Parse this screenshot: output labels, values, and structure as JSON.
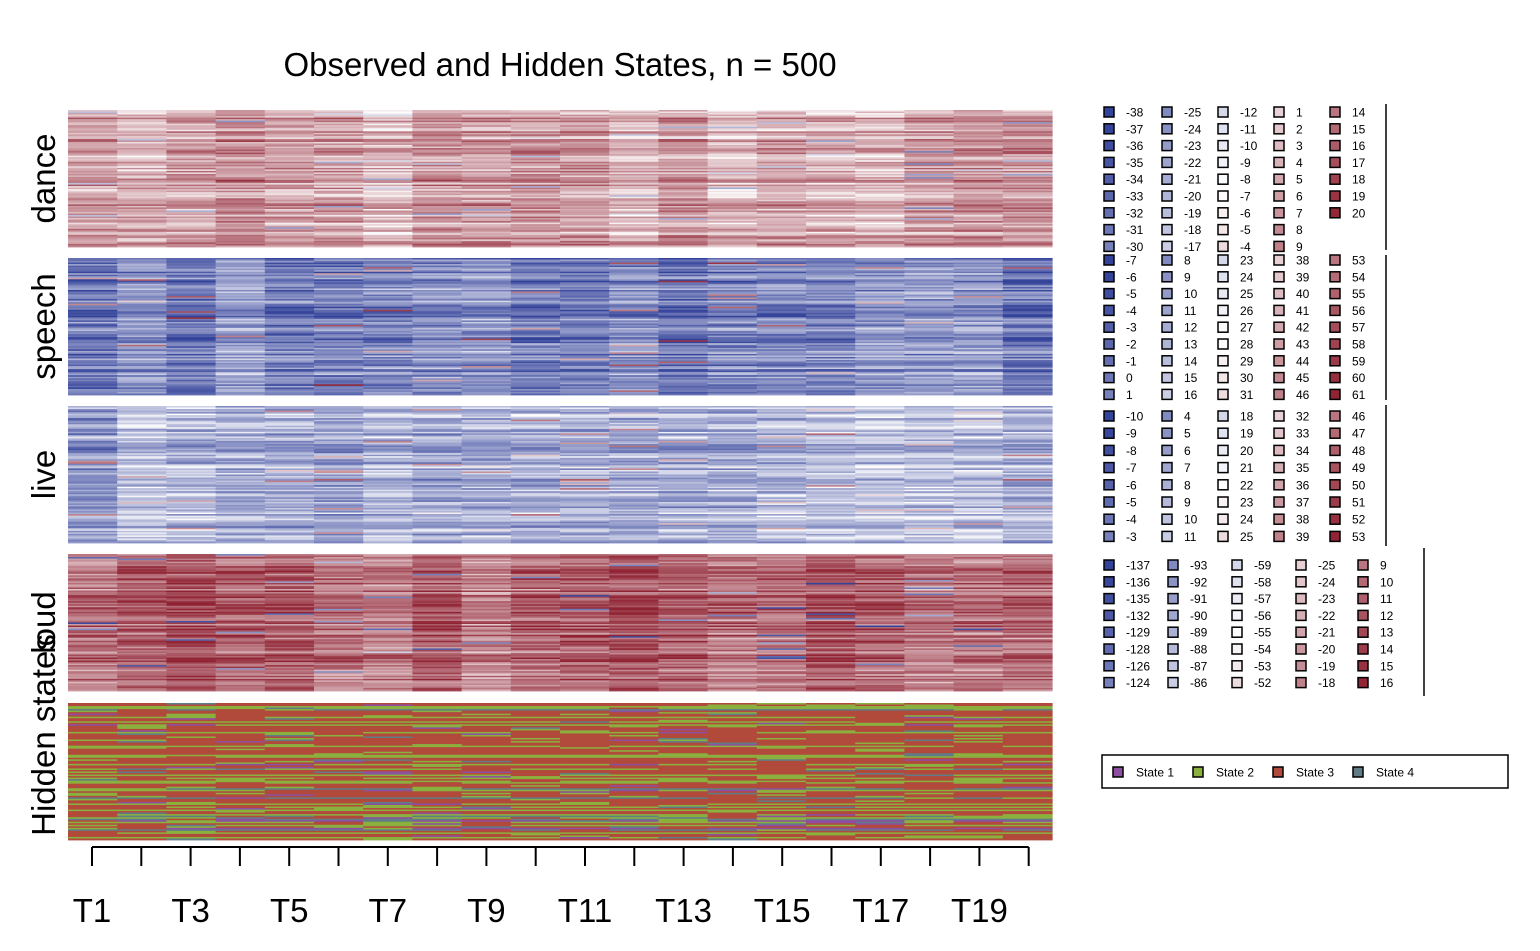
{
  "chart_data": {
    "type": "heatmap",
    "title": "Observed and Hidden States, n = 500",
    "n_sequences": 500,
    "x_tick_labels": [
      "T1",
      "T3",
      "T5",
      "T7",
      "T9",
      "T11",
      "T13",
      "T15",
      "T17",
      "T19"
    ],
    "time_points": 20,
    "channels": [
      {
        "name": "dance",
        "palette": [
          "#2c3b96",
          "#ffffff",
          "#8b1a2b"
        ],
        "mean_tone": 0.7,
        "legend": {
          "columns": [
            [
              "-38",
              "-37",
              "-36",
              "-35",
              "-34",
              "-33",
              "-32",
              "-31",
              "-30"
            ],
            [
              "-25",
              "-24",
              "-23",
              "-22",
              "-21",
              "-20",
              "-19",
              "-18",
              "-17"
            ],
            [
              "-12",
              "-11",
              "-10",
              "-9",
              "-8",
              "-7",
              "-6",
              "-5",
              "-4"
            ],
            [
              "1",
              "2",
              "3",
              "4",
              "5",
              "6",
              "7",
              "8",
              "9"
            ],
            [
              "14",
              "15",
              "16",
              "17",
              "18",
              "19",
              "20"
            ]
          ]
        }
      },
      {
        "name": "speech",
        "palette": [
          "#2c3b96",
          "#ffffff",
          "#8b1a2b"
        ],
        "mean_tone": 0.2,
        "legend": {
          "columns": [
            [
              "-7",
              "-6",
              "-5",
              "-4",
              "-3",
              "-2",
              "-1",
              "0",
              "1"
            ],
            [
              "8",
              "9",
              "10",
              "11",
              "12",
              "13",
              "14",
              "15",
              "16"
            ],
            [
              "23",
              "24",
              "25",
              "26",
              "27",
              "28",
              "29",
              "30",
              "31"
            ],
            [
              "38",
              "39",
              "40",
              "41",
              "42",
              "43",
              "44",
              "45",
              "46"
            ],
            [
              "53",
              "54",
              "55",
              "56",
              "57",
              "58",
              "59",
              "60",
              "61"
            ]
          ]
        }
      },
      {
        "name": "live",
        "palette": [
          "#2c3b96",
          "#ffffff",
          "#8b1a2b"
        ],
        "mean_tone": 0.3,
        "legend": {
          "columns": [
            [
              "-10",
              "-9",
              "-8",
              "-7",
              "-6",
              "-5",
              "-4",
              "-3"
            ],
            [
              "4",
              "5",
              "6",
              "7",
              "8",
              "9",
              "10",
              "11"
            ],
            [
              "18",
              "19",
              "20",
              "21",
              "22",
              "23",
              "24",
              "25"
            ],
            [
              "32",
              "33",
              "34",
              "35",
              "36",
              "37",
              "38",
              "39"
            ],
            [
              "46",
              "47",
              "48",
              "49",
              "50",
              "51",
              "52",
              "53"
            ]
          ]
        }
      },
      {
        "name": "loud",
        "palette": [
          "#2c3b96",
          "#ffffff",
          "#8b1a2b"
        ],
        "mean_tone": 0.82,
        "legend": {
          "columns": [
            [
              "-137",
              "-136",
              "-135",
              "-132",
              "-129",
              "-128",
              "-126",
              "-124"
            ],
            [
              "-93",
              "-92",
              "-91",
              "-90",
              "-89",
              "-88",
              "-87",
              "-86"
            ],
            [
              "-59",
              "-58",
              "-57",
              "-56",
              "-55",
              "-54",
              "-53",
              "-52"
            ],
            [
              "-25",
              "-24",
              "-23",
              "-22",
              "-21",
              "-20",
              "-19",
              "-18"
            ],
            [
              "9",
              "10",
              "11",
              "12",
              "13",
              "14",
              "15",
              "16"
            ]
          ]
        }
      }
    ],
    "hidden_states": {
      "label": "Hidden states",
      "states": [
        {
          "name": "State 1",
          "color": "#8e4fa0"
        },
        {
          "name": "State 2",
          "color": "#8ab03e"
        },
        {
          "name": "State 3",
          "color": "#b24a3c"
        },
        {
          "name": "State 4",
          "color": "#607c86"
        }
      ]
    },
    "grid": false
  }
}
